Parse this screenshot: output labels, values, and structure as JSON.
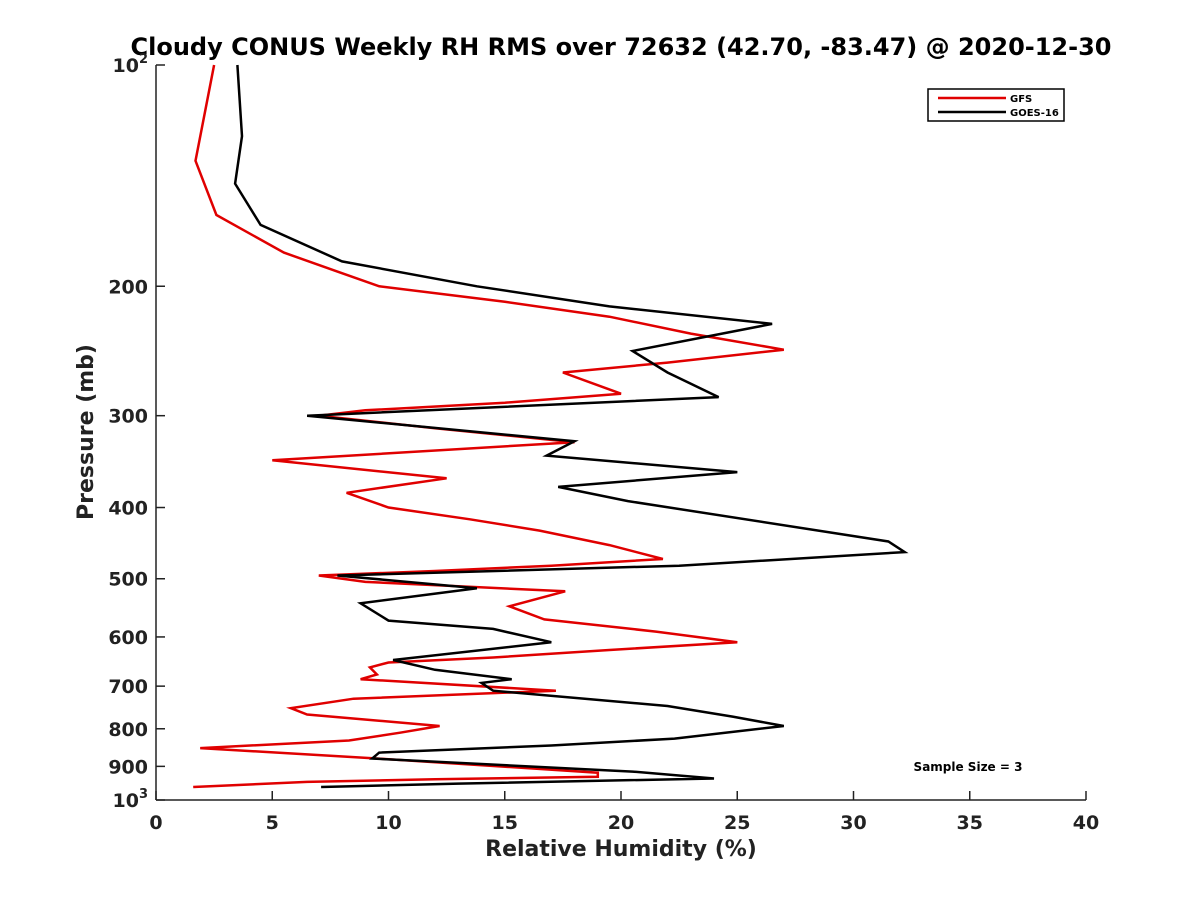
{
  "chart_data": {
    "type": "line",
    "title": "Cloudy CONUS Weekly RH RMS over 72632 (42.70, -83.47) @ 2020-12-30",
    "xlabel": "Relative Humidity (%)",
    "ylabel": "Pressure (mb)",
    "xlim": [
      0,
      40
    ],
    "ylim": [
      1000,
      100
    ],
    "yscale": "log",
    "y_reversed": true,
    "x_ticks": [
      0,
      5,
      10,
      15,
      20,
      25,
      30,
      35,
      40
    ],
    "x_tick_labels": [
      "0",
      "5",
      "10",
      "15",
      "20",
      "25",
      "30",
      "35",
      "40"
    ],
    "y_ticks": [
      100,
      200,
      300,
      400,
      500,
      600,
      700,
      800,
      900,
      1000
    ],
    "y_tick_labels": [
      {
        "base": "10",
        "sup": "2"
      },
      {
        "base": "200",
        "sup": ""
      },
      {
        "base": "300",
        "sup": ""
      },
      {
        "base": "400",
        "sup": ""
      },
      {
        "base": "500",
        "sup": ""
      },
      {
        "base": "600",
        "sup": ""
      },
      {
        "base": "700",
        "sup": ""
      },
      {
        "base": "800",
        "sup": ""
      },
      {
        "base": "900",
        "sup": ""
      },
      {
        "base": "10",
        "sup": "3"
      }
    ],
    "grid": false,
    "legend_position": "top-right",
    "annotation": "Sample Size = 3",
    "series": [
      {
        "name": "GFS",
        "color": "#e00000",
        "points": [
          [
            2.5,
            100
          ],
          [
            1.7,
            135
          ],
          [
            2.6,
            160
          ],
          [
            5.5,
            180
          ],
          [
            8.0,
            192
          ],
          [
            9.6,
            200
          ],
          [
            15.0,
            210
          ],
          [
            19.5,
            220
          ],
          [
            23.0,
            232
          ],
          [
            27.0,
            244
          ],
          [
            22.0,
            254
          ],
          [
            17.5,
            262
          ],
          [
            20.0,
            280
          ],
          [
            15.0,
            288
          ],
          [
            9.0,
            295
          ],
          [
            7.0,
            300
          ],
          [
            12.0,
            312
          ],
          [
            18.0,
            326
          ],
          [
            5.0,
            345
          ],
          [
            12.5,
            365
          ],
          [
            8.2,
            382
          ],
          [
            10.0,
            400
          ],
          [
            13.5,
            415
          ],
          [
            16.5,
            430
          ],
          [
            19.5,
            450
          ],
          [
            21.8,
            470
          ],
          [
            17.0,
            480
          ],
          [
            12.0,
            488
          ],
          [
            7.0,
            495
          ],
          [
            9.0,
            505
          ],
          [
            17.6,
            520
          ],
          [
            15.2,
            545
          ],
          [
            16.7,
            568
          ],
          [
            21.5,
            590
          ],
          [
            25.0,
            610
          ],
          [
            19.5,
            625
          ],
          [
            14.5,
            640
          ],
          [
            10.0,
            650
          ],
          [
            9.2,
            660
          ],
          [
            9.5,
            675
          ],
          [
            8.8,
            685
          ],
          [
            17.2,
            710
          ],
          [
            8.5,
            728
          ],
          [
            5.8,
            750
          ],
          [
            6.5,
            765
          ],
          [
            12.2,
            793
          ],
          [
            10.5,
            810
          ],
          [
            8.3,
            830
          ],
          [
            1.9,
            850
          ],
          [
            9.5,
            878
          ],
          [
            19.0,
            918
          ],
          [
            19.0,
            930
          ],
          [
            12.0,
            937
          ],
          [
            6.5,
            945
          ],
          [
            1.6,
            960
          ]
        ]
      },
      {
        "name": "GOES-16",
        "color": "#000000",
        "points": [
          [
            3.5,
            100
          ],
          [
            3.7,
            125
          ],
          [
            3.4,
            145
          ],
          [
            4.5,
            165
          ],
          [
            8.0,
            185
          ],
          [
            13.8,
            200
          ],
          [
            19.5,
            213
          ],
          [
            26.5,
            225
          ],
          [
            20.5,
            245
          ],
          [
            22.0,
            262
          ],
          [
            24.2,
            283
          ],
          [
            6.5,
            300
          ],
          [
            18.0,
            325
          ],
          [
            16.8,
            340
          ],
          [
            25.0,
            358
          ],
          [
            17.3,
            375
          ],
          [
            20.3,
            392
          ],
          [
            31.5,
            445
          ],
          [
            32.2,
            460
          ],
          [
            22.5,
            480
          ],
          [
            7.8,
            495
          ],
          [
            13.8,
            515
          ],
          [
            8.8,
            540
          ],
          [
            10.0,
            570
          ],
          [
            14.5,
            585
          ],
          [
            17.0,
            610
          ],
          [
            10.2,
            645
          ],
          [
            12.0,
            665
          ],
          [
            15.3,
            685
          ],
          [
            14.0,
            693
          ],
          [
            14.5,
            710
          ],
          [
            22.0,
            745
          ],
          [
            24.8,
            770
          ],
          [
            27.0,
            793
          ],
          [
            22.3,
            825
          ],
          [
            17.0,
            843
          ],
          [
            9.6,
            862
          ],
          [
            9.3,
            878
          ],
          [
            20.5,
            915
          ],
          [
            24.0,
            935
          ],
          [
            13.0,
            950
          ],
          [
            7.1,
            960
          ]
        ]
      }
    ]
  }
}
